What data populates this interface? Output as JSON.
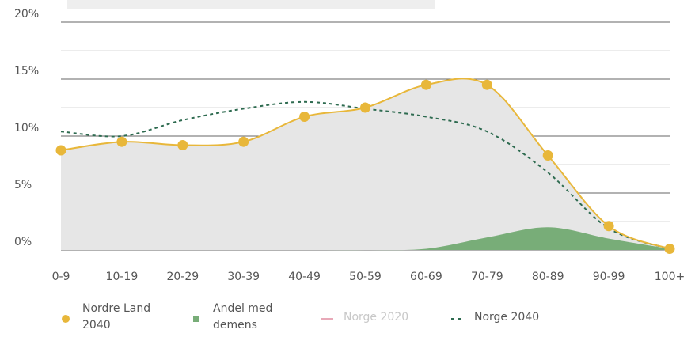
{
  "chart_data": {
    "type": "line",
    "categories": [
      "0-9",
      "10-19",
      "20-29",
      "30-39",
      "40-49",
      "50-59",
      "60-69",
      "70-79",
      "80-89",
      "90-99",
      "100+"
    ],
    "series": [
      {
        "name": "Nordre Land 2040",
        "color": "#e8b73a",
        "style": "points-smooth-area",
        "values": [
          8.75,
          9.5,
          9.2,
          9.5,
          11.7,
          12.5,
          14.5,
          14.5,
          8.3,
          2.1,
          0.1
        ]
      },
      {
        "name": "Andel med demens",
        "color": "#78ad78",
        "style": "area",
        "values": [
          0,
          0,
          0,
          0,
          0,
          0,
          0.1,
          1.1,
          2.0,
          1.0,
          0.1
        ]
      },
      {
        "name": "Norge 2020",
        "color": "#e8a9b8",
        "style": "hidden",
        "values": [
          null,
          null,
          null,
          null,
          null,
          null,
          null,
          null,
          null,
          null,
          null
        ]
      },
      {
        "name": "Norge 2040",
        "color": "#2e6b50",
        "style": "dashed",
        "values": [
          10.4,
          10.0,
          11.4,
          12.4,
          13.0,
          12.4,
          11.7,
          10.4,
          6.8,
          1.9,
          0.1
        ]
      }
    ],
    "ylim": [
      0,
      20
    ],
    "yticks": [
      {
        "value": 0,
        "label": "0%"
      },
      {
        "value": 5,
        "label": "5%"
      },
      {
        "value": 10,
        "label": "10%"
      },
      {
        "value": 15,
        "label": "15%"
      },
      {
        "value": 20,
        "label": "20%"
      }
    ],
    "minor_yticks": [
      2.5,
      7.5,
      12.5,
      17.5
    ],
    "grid": true
  }
}
